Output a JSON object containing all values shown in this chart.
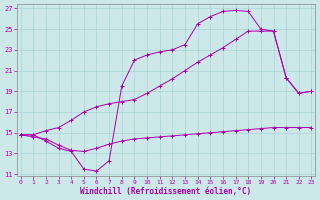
{
  "xlabel": "Windchill (Refroidissement éolien,°C)",
  "bg_color": "#cce8e8",
  "line_color": "#aa00aa",
  "grid_color": "#aad4d4",
  "xlim": [
    -0.3,
    23.3
  ],
  "ylim": [
    10.8,
    27.4
  ],
  "yticks": [
    11,
    13,
    15,
    17,
    19,
    21,
    23,
    25,
    27
  ],
  "xticks": [
    0,
    1,
    2,
    3,
    4,
    5,
    6,
    7,
    8,
    9,
    10,
    11,
    12,
    13,
    14,
    15,
    16,
    17,
    18,
    19,
    20,
    21,
    22,
    23
  ],
  "curve1_x": [
    0,
    1,
    2,
    3,
    4,
    5,
    6,
    7,
    8,
    9,
    10,
    11,
    12,
    13,
    14,
    15,
    16,
    17,
    18,
    19,
    20,
    21,
    22,
    23
  ],
  "curve1_y": [
    14.8,
    14.8,
    14.2,
    13.5,
    13.2,
    11.5,
    11.3,
    12.3,
    19.5,
    22.0,
    22.5,
    22.8,
    23.0,
    23.5,
    25.5,
    26.2,
    26.7,
    26.8,
    26.7,
    25.0,
    24.8,
    20.3,
    18.8,
    19.0
  ],
  "curve2_x": [
    0,
    1,
    2,
    3,
    4,
    5,
    6,
    7,
    8,
    9,
    10,
    11,
    12,
    13,
    14,
    15,
    16,
    17,
    18,
    19,
    20,
    21,
    22,
    23
  ],
  "curve2_y": [
    14.8,
    14.6,
    14.4,
    13.8,
    13.3,
    13.2,
    13.5,
    13.9,
    14.2,
    14.4,
    14.5,
    14.6,
    14.7,
    14.8,
    14.9,
    15.0,
    15.1,
    15.2,
    15.3,
    15.4,
    15.5,
    15.5,
    15.5,
    15.5
  ],
  "curve3_x": [
    0,
    1,
    2,
    3,
    4,
    5,
    6,
    7,
    8,
    9,
    10,
    11,
    12,
    13,
    14,
    15,
    16,
    17,
    18,
    19,
    20,
    21,
    22,
    23
  ],
  "curve3_y": [
    14.8,
    14.8,
    15.2,
    15.5,
    16.2,
    17.0,
    17.5,
    17.8,
    18.0,
    18.2,
    18.8,
    19.5,
    20.2,
    21.0,
    21.8,
    22.5,
    23.2,
    24.0,
    24.8,
    24.8,
    24.8,
    20.3,
    18.8,
    19.0
  ]
}
